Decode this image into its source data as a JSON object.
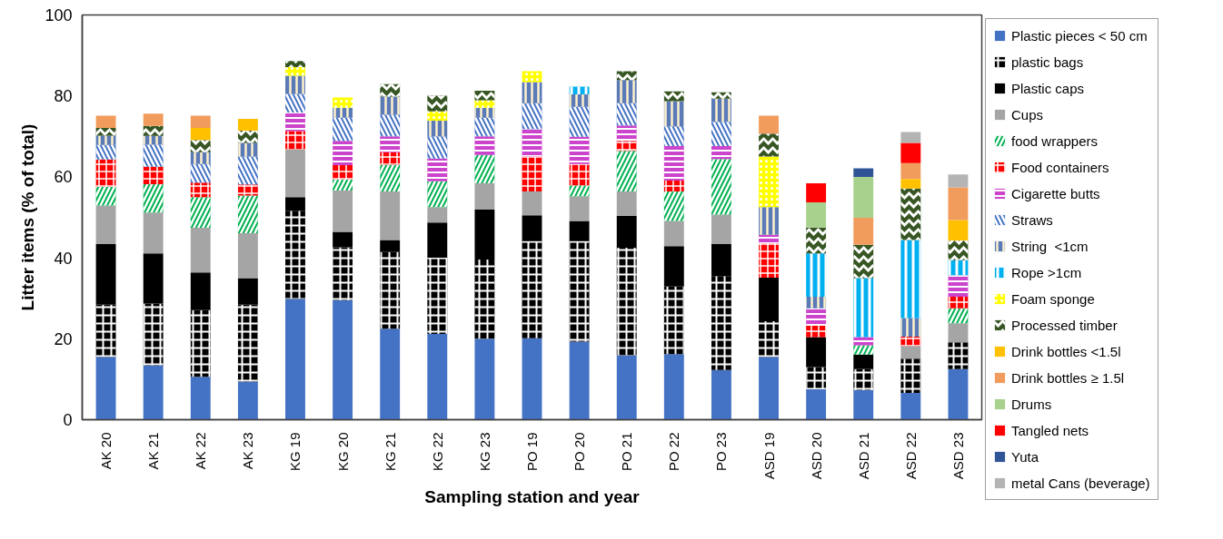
{
  "chart_data": {
    "type": "bar",
    "stacked": true,
    "xlabel": "Sampling station and year",
    "ylabel": "Litter items (% of total)",
    "categories": [
      "AK 20",
      "AK 21",
      "AK 22",
      "AK 23",
      "KG 19",
      "KG 20",
      "KG 21",
      "KG 22",
      "KG 23",
      "PO 19",
      "PO 20",
      "PO 21",
      "PO 22",
      "PO 23",
      "ASD 19",
      "ASD 20",
      "ASD 21",
      "ASD 22",
      "ASD 23"
    ],
    "ylim": [
      0,
      100
    ],
    "yticks": [
      0,
      20,
      40,
      60,
      80,
      100
    ],
    "legend": "right",
    "series": [
      {
        "name": "Plastic pieces < 50 cm",
        "color": "#4472c4",
        "values": [
          15.5,
          13.4,
          10.6,
          9.4,
          29.9,
          29.5,
          22.5,
          21.2,
          20.0,
          20.1,
          19.3,
          15.9,
          16.2,
          12.3,
          15.5,
          7.5,
          7.3,
          6.6,
          12.5
        ]
      },
      {
        "name": "plastic bags",
        "color": "#000000",
        "values": [
          12.9,
          15.3,
          16.5,
          19.0,
          21.7,
          13.1,
          18.9,
          18.8,
          19.6,
          24.0,
          24.8,
          26.6,
          16.7,
          23.2,
          8.8,
          5.5,
          5.2,
          8.5,
          6.6
        ]
      },
      {
        "name": "Plastic caps",
        "color": "#000000",
        "values": [
          15.0,
          12.4,
          9.3,
          6.6,
          3.4,
          3.8,
          3.0,
          8.7,
          12.3,
          6.4,
          5.0,
          7.9,
          10.0,
          7.9,
          10.8,
          7.4,
          3.6,
          0,
          0
        ]
      },
      {
        "name": "Cups",
        "color": "#a5a5a5",
        "values": [
          9.5,
          10.1,
          11.0,
          11.1,
          11.8,
          10.2,
          12.0,
          3.8,
          6.5,
          5.9,
          6.1,
          6.0,
          6.2,
          7.3,
          0,
          0,
          0,
          3.1,
          4.7
        ]
      },
      {
        "name": "food wrappers",
        "color": "#00b050",
        "values": [
          4.6,
          7.0,
          7.6,
          9.3,
          0,
          2.7,
          6.6,
          6.4,
          7.0,
          0,
          2.7,
          10.0,
          7.3,
          13.7,
          0,
          0,
          2.3,
          0,
          3.7
        ]
      },
      {
        "name": "Food containers",
        "color": "#ff0000",
        "values": [
          6.8,
          4.3,
          3.6,
          2.7,
          4.5,
          3.6,
          3.1,
          0,
          0,
          8.6,
          5.3,
          2.5,
          2.7,
          0,
          8.5,
          2.8,
          0,
          2.3,
          2.9
        ]
      },
      {
        "name": "Cigarette butts",
        "color": "#cc44cc",
        "values": [
          0,
          0,
          0,
          0,
          4.6,
          6.0,
          3.9,
          5.6,
          4.6,
          6.8,
          6.7,
          3.8,
          8.5,
          3.2,
          2.1,
          4.3,
          2.0,
          0,
          5.3
        ]
      },
      {
        "name": "Straws",
        "color": "#4472c4",
        "values": [
          3.6,
          5.5,
          4.6,
          6.9,
          4.6,
          5.7,
          5.4,
          5.5,
          4.6,
          6.4,
          7.4,
          5.5,
          4.9,
          6.0,
          0,
          0,
          0,
          0,
          0
        ]
      },
      {
        "name": "String  <1cm",
        "color": "#5a7ab8",
        "values": [
          2.3,
          2.1,
          2.9,
          3.4,
          4.5,
          2.5,
          4.4,
          3.9,
          2.5,
          5.2,
          3.1,
          5.7,
          6.2,
          5.7,
          6.8,
          2.9,
          0,
          4.6,
          0
        ]
      },
      {
        "name": "Rope >1cm",
        "color": "#00b0f0",
        "values": [
          0,
          0,
          0,
          0,
          0,
          0,
          0,
          0,
          0,
          0,
          1.9,
          0,
          0,
          0,
          0,
          10.7,
          14.6,
          19.3,
          3.7
        ]
      },
      {
        "name": "Foam sponge",
        "color": "#ffff00",
        "values": [
          0,
          0,
          0,
          0,
          2.1,
          2.5,
          0,
          2.3,
          1.8,
          2.7,
          0,
          0,
          0,
          0,
          12.5,
          0,
          0,
          0,
          0
        ]
      },
      {
        "name": "Processed timber",
        "color": "#375623",
        "values": [
          1.9,
          2.5,
          3.0,
          3.0,
          1.5,
          0,
          3.1,
          3.9,
          2.4,
          0,
          0,
          2.2,
          2.4,
          1.6,
          5.7,
          6.4,
          8.2,
          12.7,
          4.9
        ]
      },
      {
        "name": "Drink bottles <1.5l",
        "color": "#ffc000",
        "values": [
          0,
          0,
          3.0,
          2.9,
          0,
          0,
          0,
          0,
          0,
          0,
          0,
          0,
          0,
          0,
          0,
          0,
          0,
          2.4,
          5.0
        ]
      },
      {
        "name": "Drink bottles ≥ 1.5l",
        "color": "#f19c5c",
        "values": [
          3.0,
          3.0,
          3.0,
          0,
          0,
          0,
          0,
          0,
          0,
          0,
          0,
          0,
          0,
          0,
          4.4,
          0,
          6.7,
          3.9,
          8.1
        ]
      },
      {
        "name": "Drums",
        "color": "#a9d18e",
        "values": [
          0,
          0,
          0,
          0,
          0,
          0,
          0,
          0,
          0,
          0,
          0,
          0,
          0,
          0,
          0,
          6.2,
          10.1,
          0,
          0
        ]
      },
      {
        "name": "Tangled nets",
        "color": "#ff0000",
        "values": [
          0,
          0,
          0,
          0,
          0,
          0,
          0,
          0,
          0,
          0,
          0,
          0,
          0,
          0,
          0,
          4.7,
          0,
          5.0,
          0
        ]
      },
      {
        "name": "Yuta",
        "color": "#2f5597",
        "values": [
          0,
          0,
          0,
          0,
          0,
          0,
          0,
          0,
          0,
          0,
          0,
          0,
          0,
          0,
          0,
          0,
          2.1,
          0,
          0
        ]
      },
      {
        "name": "metal Cans (beverage)",
        "color": "#b4b4b4",
        "values": [
          0,
          0,
          0,
          0,
          0,
          0,
          0,
          0,
          0,
          0,
          0,
          0,
          0,
          0,
          0,
          0,
          0,
          2.7,
          3.2
        ]
      }
    ]
  }
}
